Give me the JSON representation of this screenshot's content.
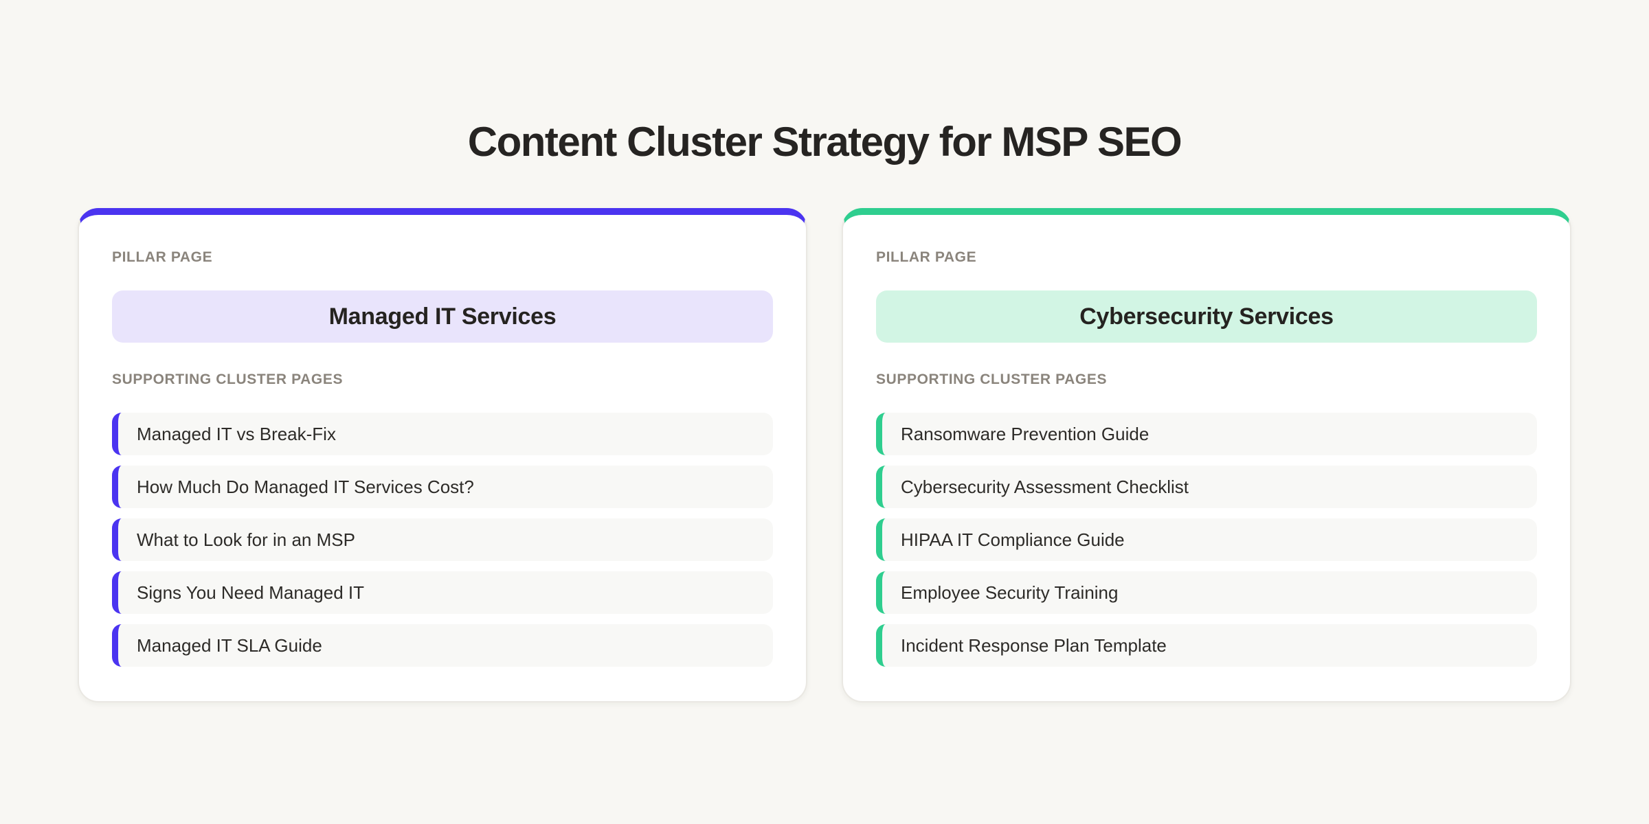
{
  "page": {
    "title": "Content Cluster Strategy for MSP SEO",
    "background_color": "#F8F7F3"
  },
  "cards": [
    {
      "accent_color": "#4B34F0",
      "accent_light_color": "#E9E4FC",
      "pillar_label": "PILLAR PAGE",
      "pillar_title": "Managed IT Services",
      "cluster_label": "SUPPORTING CLUSTER PAGES",
      "cluster_pages": [
        "Managed IT vs Break-Fix",
        "How Much Do Managed IT Services Cost?",
        "What to Look for in an MSP",
        "Signs You Need Managed IT",
        "Managed IT SLA Guide"
      ]
    },
    {
      "accent_color": "#2FCE8F",
      "accent_light_color": "#D2F5E4",
      "pillar_label": "PILLAR PAGE",
      "pillar_title": "Cybersecurity Services",
      "cluster_label": "SUPPORTING CLUSTER PAGES",
      "cluster_pages": [
        "Ransomware Prevention Guide",
        "Cybersecurity Assessment Checklist",
        "HIPAA IT Compliance Guide",
        "Employee Security Training",
        "Incident Response Plan Template"
      ]
    }
  ]
}
